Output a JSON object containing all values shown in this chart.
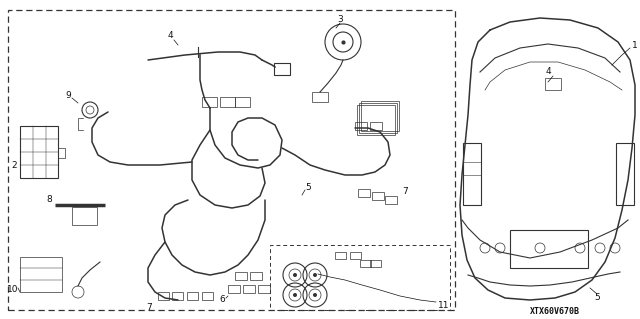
{
  "bg_color": "#ffffff",
  "fig_width": 6.4,
  "fig_height": 3.19,
  "dpi": 100,
  "diagram_code": "XTX60V670B",
  "line_color": "#333333",
  "label_color": "#111111"
}
